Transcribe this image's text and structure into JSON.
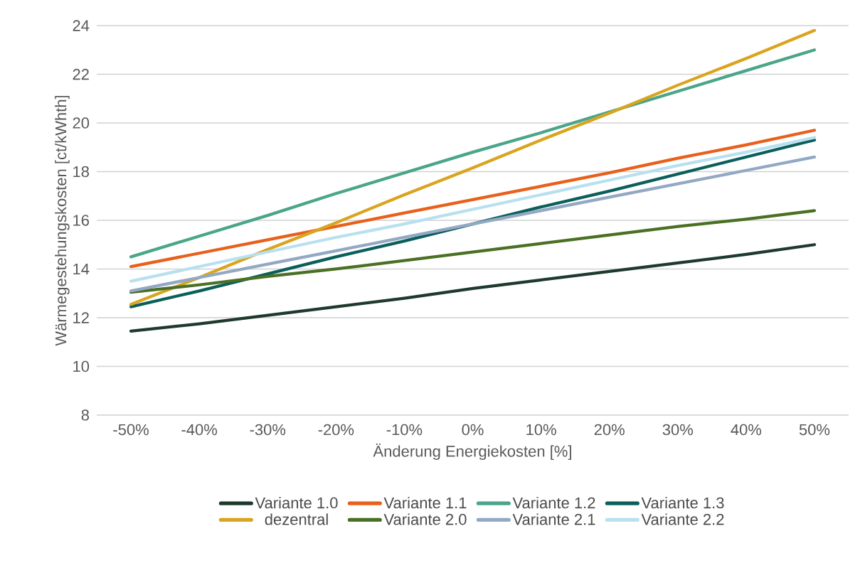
{
  "chart_data": {
    "type": "line",
    "xlabel": "Änderung Energiekosten [%]",
    "ylabel": "Wärmegestehungskosten [ct/kWhth]",
    "categories": [
      "-50%",
      "-40%",
      "-30%",
      "-20%",
      "-10%",
      "0%",
      "10%",
      "20%",
      "30%",
      "40%",
      "50%"
    ],
    "ylim": [
      8,
      24
    ],
    "yticks": [
      8,
      10,
      12,
      14,
      16,
      18,
      20,
      22,
      24
    ],
    "grid": "y",
    "legend": "bottom",
    "marker": "none",
    "line_style": "solid",
    "series": [
      {
        "name": "Variante 1.0",
        "color": "#1f3a2d",
        "values": [
          11.45,
          11.75,
          12.1,
          12.45,
          12.8,
          13.2,
          13.55,
          13.9,
          14.25,
          14.6,
          15.0
        ]
      },
      {
        "name": "Variante 1.1",
        "color": "#e8601c",
        "values": [
          14.1,
          14.65,
          15.2,
          15.75,
          16.3,
          16.85,
          17.4,
          17.95,
          18.55,
          19.1,
          19.7
        ]
      },
      {
        "name": "Variante 1.2",
        "color": "#4aa58a",
        "values": [
          14.5,
          15.35,
          16.2,
          17.1,
          17.95,
          18.8,
          19.6,
          20.45,
          21.3,
          22.15,
          23.0
        ]
      },
      {
        "name": "Variante 1.3",
        "color": "#0b5f5b",
        "values": [
          12.45,
          13.1,
          13.8,
          14.5,
          15.15,
          15.85,
          16.55,
          17.2,
          17.9,
          18.6,
          19.3
        ]
      },
      {
        "name": "dezentral",
        "color": "#d9a520",
        "values": [
          12.55,
          13.65,
          14.8,
          15.9,
          17.05,
          18.15,
          19.3,
          20.4,
          21.55,
          22.65,
          23.8
        ]
      },
      {
        "name": "Variante 2.0",
        "color": "#4a7023",
        "values": [
          13.05,
          13.35,
          13.7,
          14.0,
          14.35,
          14.7,
          15.05,
          15.4,
          15.75,
          16.05,
          16.4
        ]
      },
      {
        "name": "Variante 2.1",
        "color": "#93a8c4",
        "values": [
          13.1,
          13.65,
          14.2,
          14.75,
          15.3,
          15.85,
          16.4,
          16.95,
          17.5,
          18.05,
          18.6
        ]
      },
      {
        "name": "Variante 2.2",
        "color": "#b8e0ef",
        "values": [
          13.5,
          14.1,
          14.7,
          15.3,
          15.85,
          16.45,
          17.05,
          17.65,
          18.25,
          18.8,
          19.4
        ]
      }
    ]
  }
}
